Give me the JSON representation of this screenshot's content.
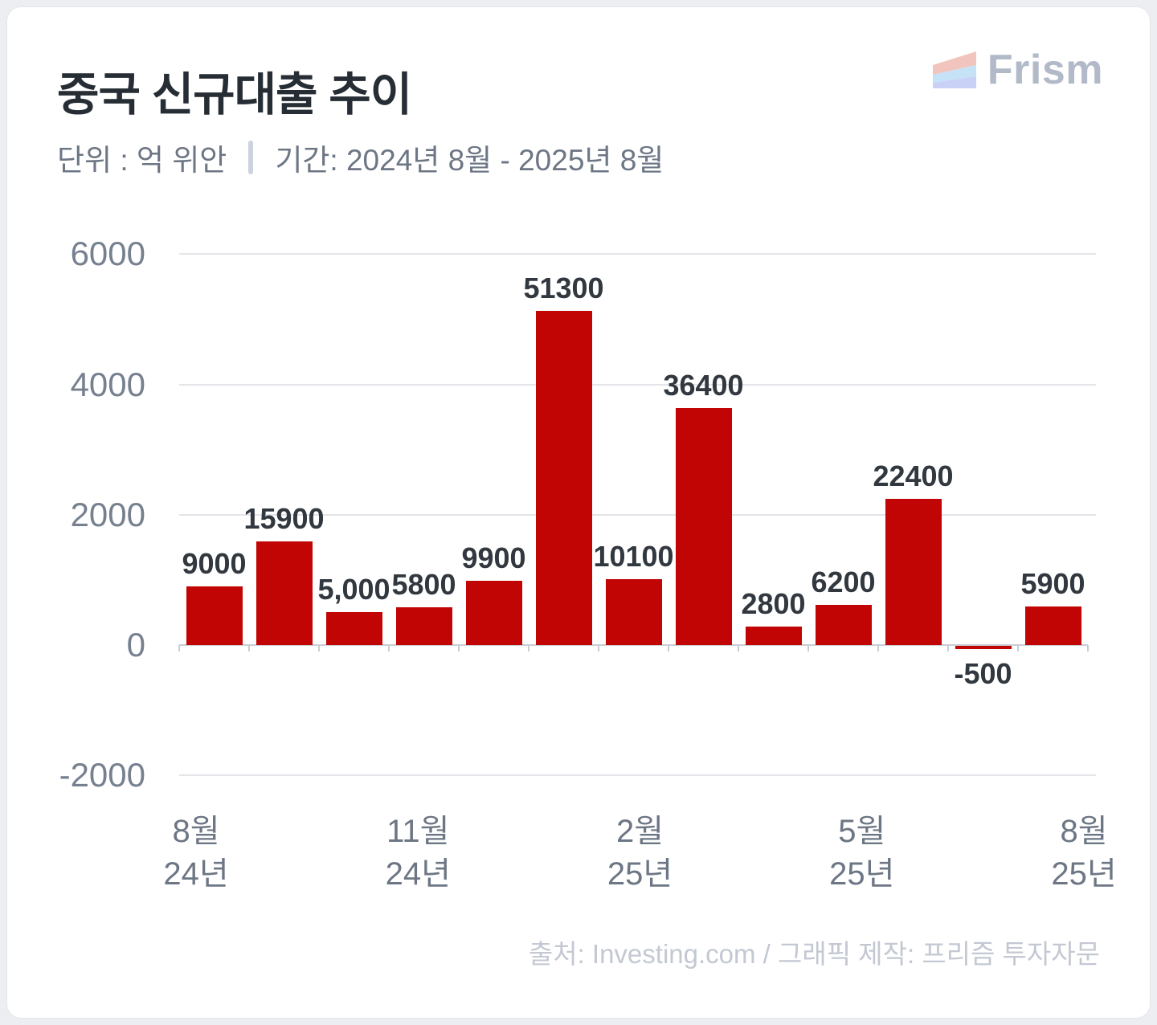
{
  "card": {
    "page_background": "#edeef2",
    "background": "#ffffff"
  },
  "header": {
    "title": "중국 신규대출 추이",
    "unit_label": "단위 : 억 위안",
    "period_label": "기간: 2024년 8월 - 2025년 8월"
  },
  "logo": {
    "text": "Frism"
  },
  "chart_data": {
    "type": "bar",
    "title": "중국 신규대출 추이",
    "unit": "억 위안",
    "period": "2024년 8월 - 2025년 8월",
    "values": [
      9000,
      15900,
      5000,
      5800,
      9900,
      51300,
      10100,
      36400,
      2800,
      6200,
      22400,
      -500,
      5900
    ],
    "bar_labels": [
      "9000",
      "15900",
      "5,000",
      "5800",
      "9900",
      "51300",
      "10100",
      "36400",
      "2800",
      "6200",
      "22400",
      "-500",
      "5900"
    ],
    "x_tick_labels": [
      [
        "8월",
        "24년"
      ],
      [
        "11월",
        "24년"
      ],
      [
        "2월",
        "25년"
      ],
      [
        "5월",
        "25년"
      ],
      [
        "8월",
        "25년"
      ]
    ],
    "y_ticks": [
      6000,
      4000,
      2000,
      0,
      -2000
    ],
    "ylim": [
      -2000,
      6000
    ],
    "plot_value_scale": 0.1,
    "grid": "horizontal",
    "legend": "none",
    "colors": {
      "bar": "#c10404",
      "bar_label": "#32383f",
      "y_axis_label": "#76808f",
      "x_axis_label": "#6d7684",
      "gridline": "#e3e5e9",
      "baseline": "#c9cdd3",
      "logo_stripe_top": "#f1c5be",
      "logo_stripe_mid": "#c6e2f6",
      "logo_stripe_bottom": "#c9d1f6",
      "logo_text": "#b2bac9"
    }
  },
  "footer": {
    "source": "출처: Investing.com / 그래픽 제작: 프리즘 투자자문"
  }
}
